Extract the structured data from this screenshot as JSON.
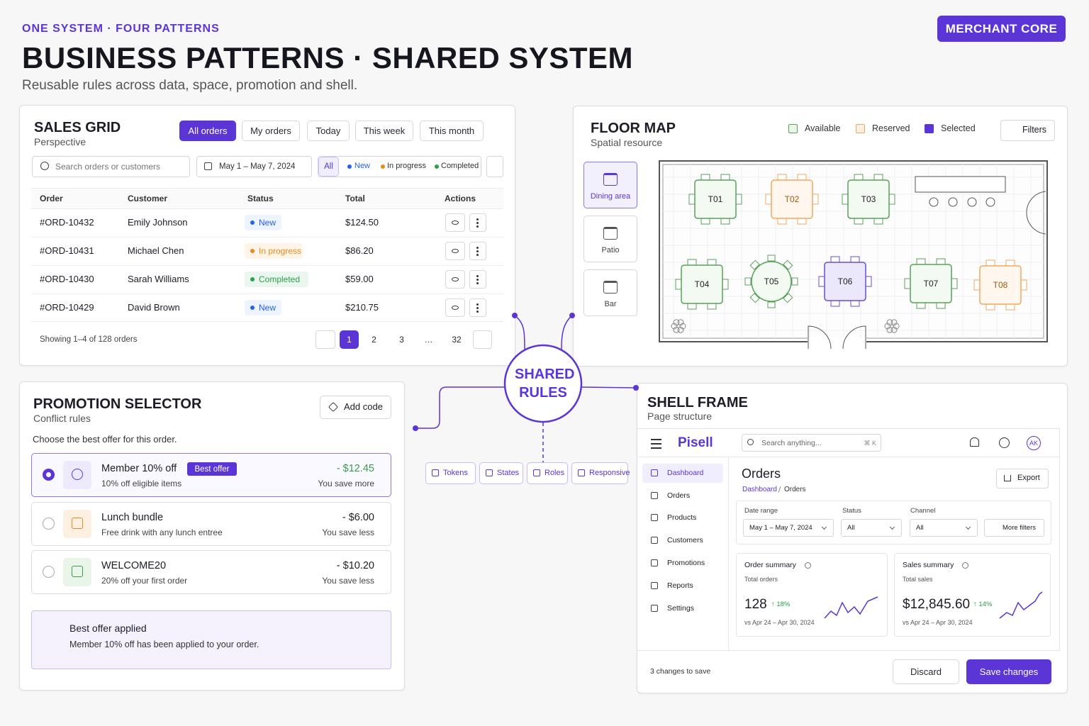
{
  "header": {
    "eyebrow": "ONE SYSTEM · FOUR PATTERNS",
    "title": "BUSINESS PATTERNS · SHARED SYSTEM",
    "subtitle": "Reusable rules across data, space, promotion and shell.",
    "badge": "MERCHANT CORE"
  },
  "sales_grid": {
    "title": "SALES GRID",
    "subtitle": "Perspective",
    "tabs": [
      "All orders",
      "My orders",
      "Today",
      "This week",
      "This month"
    ],
    "search": "Search orders or customers",
    "date": "May 1 – May 7, 2024",
    "filters": [
      "All",
      "New",
      "In progress",
      "Completed"
    ],
    "columns": [
      "Order",
      "Customer",
      "Status",
      "Total",
      "Actions"
    ],
    "rows": [
      [
        "#ORD-10432",
        "Emily Johnson",
        "New",
        "$124.50"
      ],
      [
        "#ORD-10431",
        "Michael Chen",
        "In progress",
        "$86.20"
      ],
      [
        "#ORD-10430",
        "Sarah Williams",
        "Completed",
        "$59.00"
      ],
      [
        "#ORD-10429",
        "David Brown",
        "New",
        "$210.75"
      ]
    ],
    "footer": "Showing 1–4 of 128 orders",
    "pages": [
      "1",
      "2",
      "3",
      "…",
      "32"
    ]
  },
  "floor_map": {
    "title": "FLOOR MAP",
    "subtitle": "Spatial resource",
    "legend": [
      "Available",
      "Reserved",
      "Selected"
    ],
    "filters": "Filters",
    "zones": [
      "Dining area",
      "Patio",
      "Bar"
    ],
    "tables": [
      "T01",
      "T02",
      "T03",
      "T04",
      "T05",
      "T06",
      "T07",
      "T08"
    ]
  },
  "shared": {
    "title": "SHARED RULES",
    "chips": [
      "Tokens",
      "States",
      "Roles",
      "Responsive"
    ]
  },
  "promotion": {
    "title": "PROMOTION SELECTOR",
    "subtitle": "Conflict rules",
    "add_code": "Add code",
    "prompt": "Choose the best offer for this order.",
    "offers": [
      {
        "name": "Member 10% off",
        "badge": "Best offer",
        "description": "10% off eligible items",
        "amount": "- $12.45",
        "note": "You save more"
      },
      {
        "name": "Lunch bundle",
        "description": "Free drink with any lunch entree",
        "amount": "- $6.00",
        "note": "You save less"
      },
      {
        "name": "WELCOME20",
        "description": "20% off your first order",
        "amount": "- $10.20",
        "note": "You save less"
      }
    ],
    "applied": {
      "title": "Best offer applied",
      "text": "Member 10% off has been applied to your order."
    }
  },
  "shell": {
    "title": "SHELL FRAME",
    "subtitle": "Page structure",
    "brand": "Pisell",
    "search": "Search anything...",
    "shortcut": "⌘ K",
    "avatar": "AK",
    "nav": [
      "Dashboard",
      "Orders",
      "Products",
      "Customers",
      "Promotions",
      "Reports",
      "Settings"
    ],
    "page_title": "Orders",
    "breadcrumb": [
      "Dashboard",
      "Orders"
    ],
    "export": "Export",
    "filters": [
      {
        "label": "Date range",
        "value": "May 1 – May 7, 2024"
      },
      {
        "label": "Status",
        "value": "All"
      },
      {
        "label": "Channel",
        "value": "All"
      }
    ],
    "more_filters": "More filters",
    "cards": [
      {
        "title": "Order summary",
        "subtitle": "Total orders",
        "value": "128",
        "change": "↑ 18%",
        "period": "vs Apr 24 – Apr 30, 2024"
      },
      {
        "title": "Sales summary",
        "subtitle": "Total sales",
        "value": "$12,845.60",
        "change": "↑ 14%",
        "period": "vs Apr 24 – Apr 30, 2024"
      }
    ],
    "changes": "3 changes to save",
    "discard": "Discard",
    "save": "Save changes"
  }
}
